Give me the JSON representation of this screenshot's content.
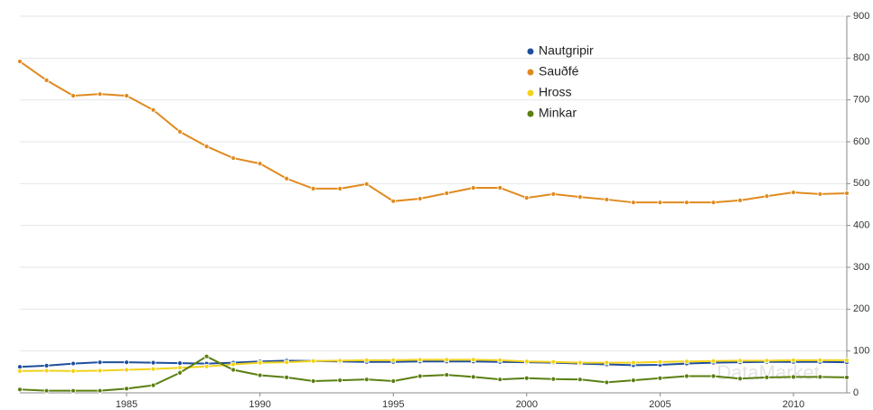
{
  "chart_data": {
    "type": "line",
    "x": [
      1981,
      1982,
      1983,
      1984,
      1985,
      1986,
      1987,
      1988,
      1989,
      1990,
      1991,
      1992,
      1993,
      1994,
      1995,
      1996,
      1997,
      1998,
      1999,
      2000,
      2001,
      2002,
      2003,
      2004,
      2005,
      2006,
      2007,
      2008,
      2009,
      2010,
      2011,
      2012
    ],
    "series": [
      {
        "name": "Nautgripir",
        "color": "#1f4e9c",
        "values": [
          62,
          65,
          70,
          73,
          73,
          72,
          71,
          70,
          72,
          75,
          77,
          76,
          75,
          74,
          74,
          75,
          75,
          75,
          74,
          73,
          72,
          70,
          68,
          66,
          67,
          70,
          72,
          73,
          74,
          74,
          74,
          73
        ]
      },
      {
        "name": "Sauðfé",
        "color": "#e08a1e",
        "values": [
          792,
          747,
          710,
          714,
          710,
          676,
          624,
          589,
          561,
          548,
          512,
          488,
          488,
          499,
          458,
          464,
          477,
          490,
          490,
          466,
          475,
          468,
          462,
          455,
          455,
          455,
          455,
          460,
          470,
          479,
          475,
          477
        ]
      },
      {
        "name": "Hross",
        "color": "#f2d21a",
        "values": [
          52,
          53,
          52,
          53,
          55,
          57,
          60,
          63,
          68,
          72,
          73,
          76,
          77,
          78,
          78,
          79,
          79,
          79,
          78,
          75,
          74,
          72,
          72,
          72,
          74,
          75,
          76,
          77,
          77,
          78,
          78,
          78
        ]
      },
      {
        "name": "Minkar",
        "color": "#5a7f12",
        "values": [
          8,
          5,
          5,
          5,
          10,
          18,
          48,
          87,
          55,
          42,
          37,
          28,
          30,
          32,
          28,
          40,
          43,
          38,
          32,
          35,
          33,
          32,
          25,
          30,
          35,
          40,
          40,
          34,
          37,
          38,
          38,
          37
        ]
      }
    ],
    "xlim": [
      1981,
      2012
    ],
    "xticks": [
      1985,
      1990,
      1995,
      2000,
      2005,
      2010
    ],
    "ylim": [
      0,
      900
    ],
    "yticks": [
      0,
      100,
      200,
      300,
      400,
      500,
      600,
      700,
      800,
      900
    ],
    "grid": true,
    "watermark": "DataMarket"
  }
}
